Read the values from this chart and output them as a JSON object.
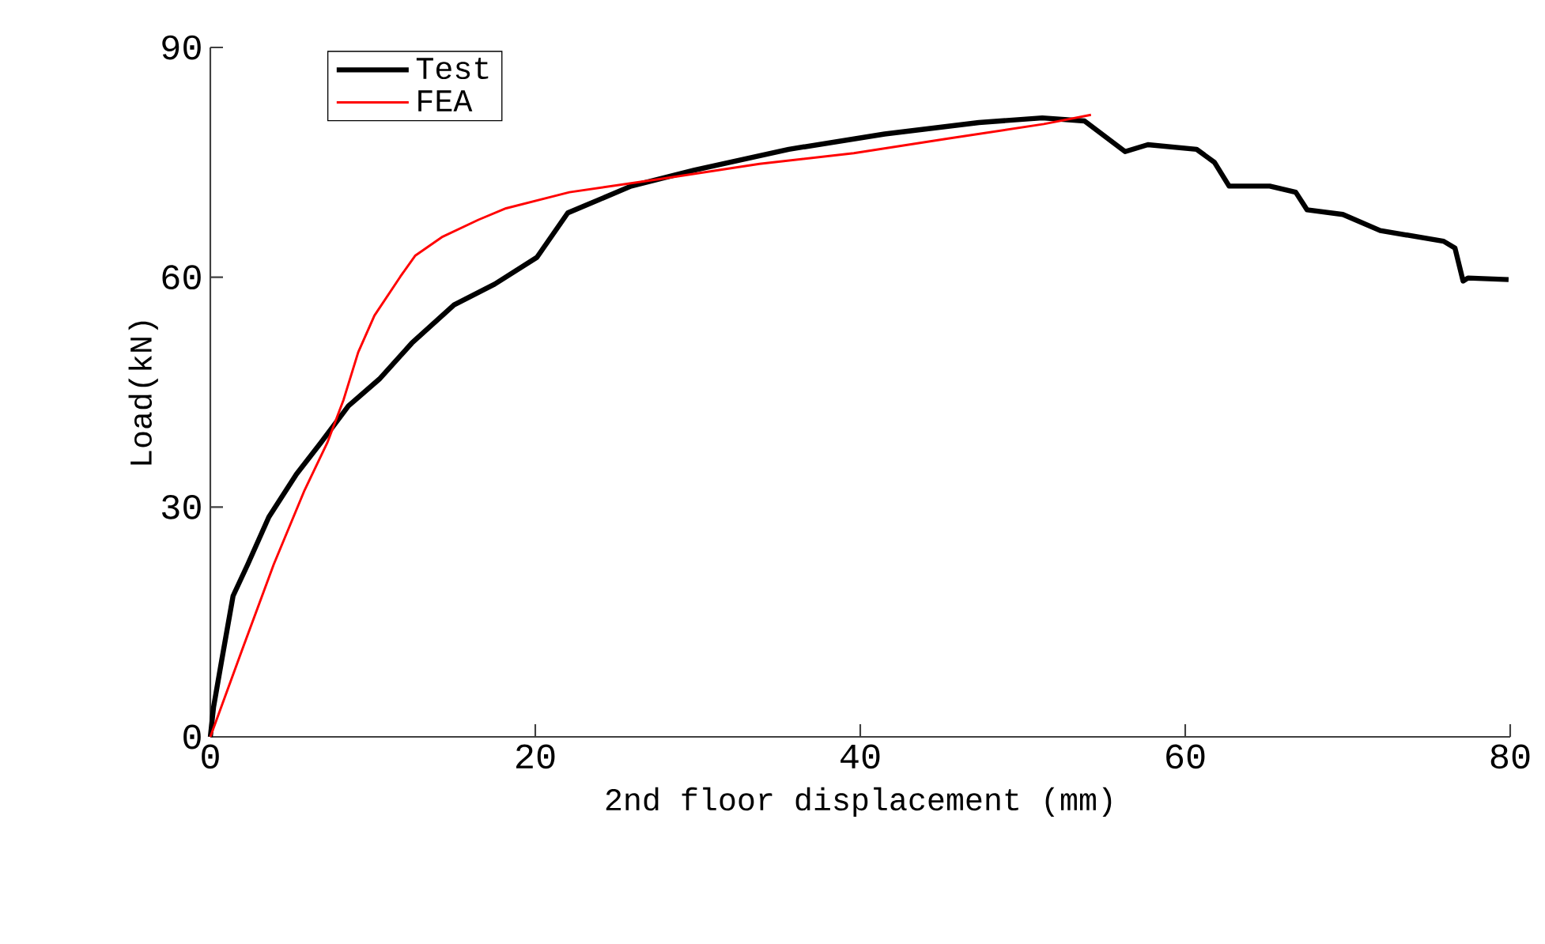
{
  "chart_data": {
    "type": "line",
    "xlabel": "2nd floor displacement (mm)",
    "ylabel": "Load(kN)",
    "xlim": [
      0,
      80
    ],
    "ylim": [
      0,
      90
    ],
    "xticks": [
      0,
      20,
      40,
      60,
      80
    ],
    "yticks": [
      0,
      30,
      60,
      90
    ],
    "grid": false,
    "legend": "top left",
    "marker": "none",
    "line_style": "solid",
    "series": [
      {
        "name": "Test",
        "color": "#000000",
        "x": [
          0,
          0.2,
          0.7,
          1.4,
          2.3,
          3.6,
          5.3,
          6.8,
          8.5,
          10.4,
          12.4,
          15,
          17.5,
          20.1,
          22,
          25.9,
          29.8,
          35.6,
          41.5,
          47.3,
          51.2,
          53.8,
          56.3,
          57.7,
          60.7,
          61.8,
          62.7,
          65.2,
          66.8,
          67.5,
          69.7,
          72,
          75.9,
          76.6,
          77.1,
          77.4,
          79.9
        ],
        "values": [
          0,
          3.9,
          10,
          18.4,
          22.5,
          28.7,
          34.3,
          38.4,
          43.2,
          46.7,
          51.4,
          56.4,
          59.1,
          62.6,
          68.4,
          71.9,
          74,
          76.7,
          78.7,
          80.2,
          80.8,
          80.4,
          76.4,
          77.3,
          76.7,
          75,
          71.9,
          71.9,
          71.1,
          68.8,
          68.2,
          66.1,
          64.7,
          63.8,
          59.5,
          59.9,
          59.7
        ]
      },
      {
        "name": "FEA",
        "color": "#ff0000",
        "x": [
          0,
          2,
          3.9,
          5.8,
          7.2,
          8.2,
          9.1,
          10.1,
          11.7,
          12.6,
          14.3,
          16.5,
          18.2,
          22.1,
          27.9,
          33.8,
          39.6,
          45.4,
          51.3,
          54.2
        ],
        "values": [
          0,
          11.6,
          22.5,
          32.2,
          38.4,
          44,
          50.2,
          55,
          60.1,
          62.8,
          65.3,
          67.5,
          69,
          71.1,
          72.9,
          74.8,
          76.2,
          78.1,
          80,
          81.2
        ]
      }
    ]
  }
}
